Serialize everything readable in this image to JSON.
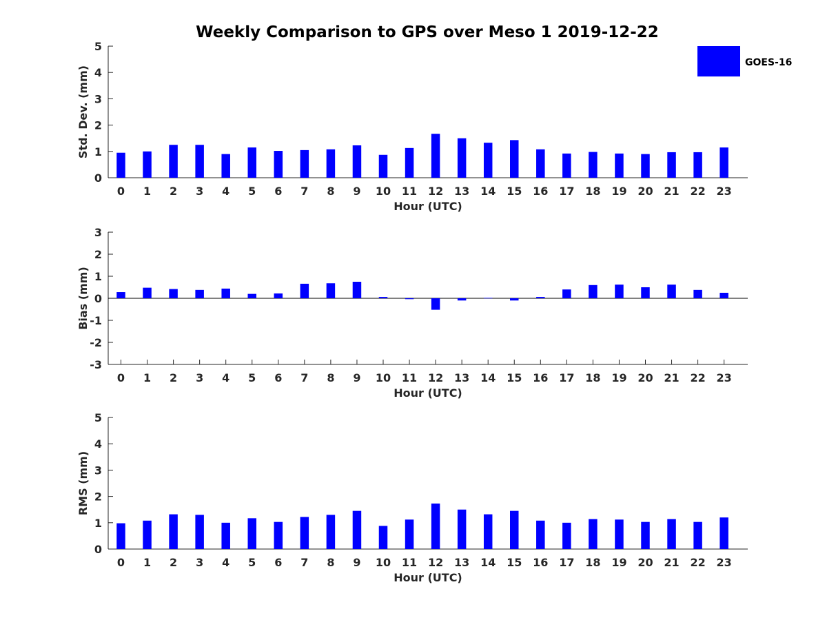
{
  "title": "Weekly Comparison to GPS over Meso 1 2019-12-22",
  "legend": {
    "label": "GOES-16",
    "color": "#0000ff"
  },
  "colors": {
    "bar": "#0000ff",
    "axis": "#262626",
    "text": "#262626"
  },
  "chart_data": [
    {
      "type": "bar",
      "name": "std-dev",
      "categories": [
        "0",
        "1",
        "2",
        "3",
        "4",
        "5",
        "6",
        "7",
        "8",
        "9",
        "10",
        "11",
        "12",
        "13",
        "14",
        "15",
        "16",
        "17",
        "18",
        "19",
        "20",
        "21",
        "22",
        "23"
      ],
      "series": [
        {
          "name": "GOES-16",
          "values": [
            0.95,
            1.0,
            1.25,
            1.25,
            0.9,
            1.15,
            1.02,
            1.05,
            1.08,
            1.23,
            0.87,
            1.13,
            1.67,
            1.5,
            1.33,
            1.43,
            1.08,
            0.92,
            0.98,
            0.92,
            0.9,
            0.97,
            0.97,
            1.15
          ]
        }
      ],
      "xlabel": "Hour (UTC)",
      "ylabel": "Std. Dev. (mm)",
      "ylim": [
        0,
        5
      ],
      "yticks": [
        "0",
        "1",
        "2",
        "3",
        "4",
        "5"
      ]
    },
    {
      "type": "bar",
      "name": "bias",
      "categories": [
        "0",
        "1",
        "2",
        "3",
        "4",
        "5",
        "6",
        "7",
        "8",
        "9",
        "10",
        "11",
        "12",
        "13",
        "14",
        "15",
        "16",
        "17",
        "18",
        "19",
        "20",
        "21",
        "22",
        "23"
      ],
      "series": [
        {
          "name": "GOES-16",
          "values": [
            0.28,
            0.48,
            0.42,
            0.38,
            0.44,
            0.2,
            0.22,
            0.66,
            0.68,
            0.75,
            0.06,
            -0.04,
            -0.52,
            -0.1,
            0.02,
            -0.1,
            0.06,
            0.4,
            0.6,
            0.62,
            0.5,
            0.62,
            0.38,
            0.25
          ]
        }
      ],
      "xlabel": "Hour (UTC)",
      "ylabel": "Bias (mm)",
      "ylim": [
        -3,
        3
      ],
      "yticks": [
        "-3",
        "-2",
        "-1",
        "0",
        "1",
        "2",
        "3"
      ]
    },
    {
      "type": "bar",
      "name": "rms",
      "categories": [
        "0",
        "1",
        "2",
        "3",
        "4",
        "5",
        "6",
        "7",
        "8",
        "9",
        "10",
        "11",
        "12",
        "13",
        "14",
        "15",
        "16",
        "17",
        "18",
        "19",
        "20",
        "21",
        "22",
        "23"
      ],
      "series": [
        {
          "name": "GOES-16",
          "values": [
            0.98,
            1.08,
            1.32,
            1.3,
            1.0,
            1.17,
            1.03,
            1.22,
            1.3,
            1.45,
            0.88,
            1.12,
            1.73,
            1.5,
            1.32,
            1.45,
            1.08,
            1.0,
            1.14,
            1.12,
            1.03,
            1.14,
            1.03,
            1.2
          ]
        }
      ],
      "xlabel": "Hour (UTC)",
      "ylabel": "RMS (mm)",
      "ylim": [
        0,
        5
      ],
      "yticks": [
        "0",
        "1",
        "2",
        "3",
        "4",
        "5"
      ]
    }
  ]
}
